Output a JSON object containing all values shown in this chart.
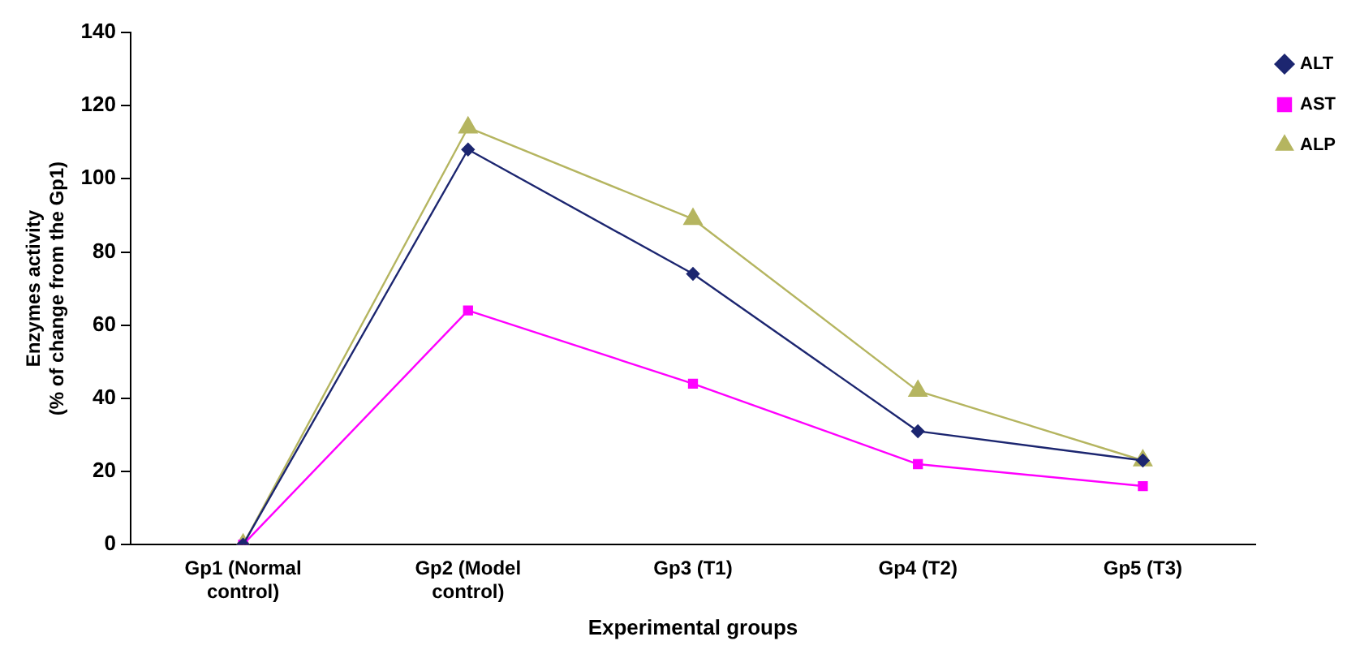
{
  "chart_data": {
    "type": "line",
    "xlabel": "Experimental groups",
    "ylabel": "Enzymes activity\n(% of change from the Gp1)",
    "categories": [
      "Gp1 (Normal control)",
      "Gp2 (Model control)",
      "Gp3 (T1)",
      "Gp4 (T2)",
      "Gp5 (T3)"
    ],
    "series": [
      {
        "name": "ALT",
        "color": "#1c2670",
        "marker": "diamond",
        "values": [
          0,
          108,
          74,
          31,
          23
        ]
      },
      {
        "name": "AST",
        "color": "#ff00ff",
        "marker": "square",
        "values": [
          0,
          64,
          44,
          22,
          16
        ]
      },
      {
        "name": "ALP",
        "color": "#b5b560",
        "marker": "triangle",
        "values": [
          0,
          114,
          89,
          42,
          23
        ]
      }
    ],
    "ylim": [
      0,
      140
    ],
    "yticks": [
      0,
      20,
      40,
      60,
      80,
      100,
      120,
      140
    ],
    "grid": false,
    "legend": "top right",
    "line_style": "solid"
  }
}
